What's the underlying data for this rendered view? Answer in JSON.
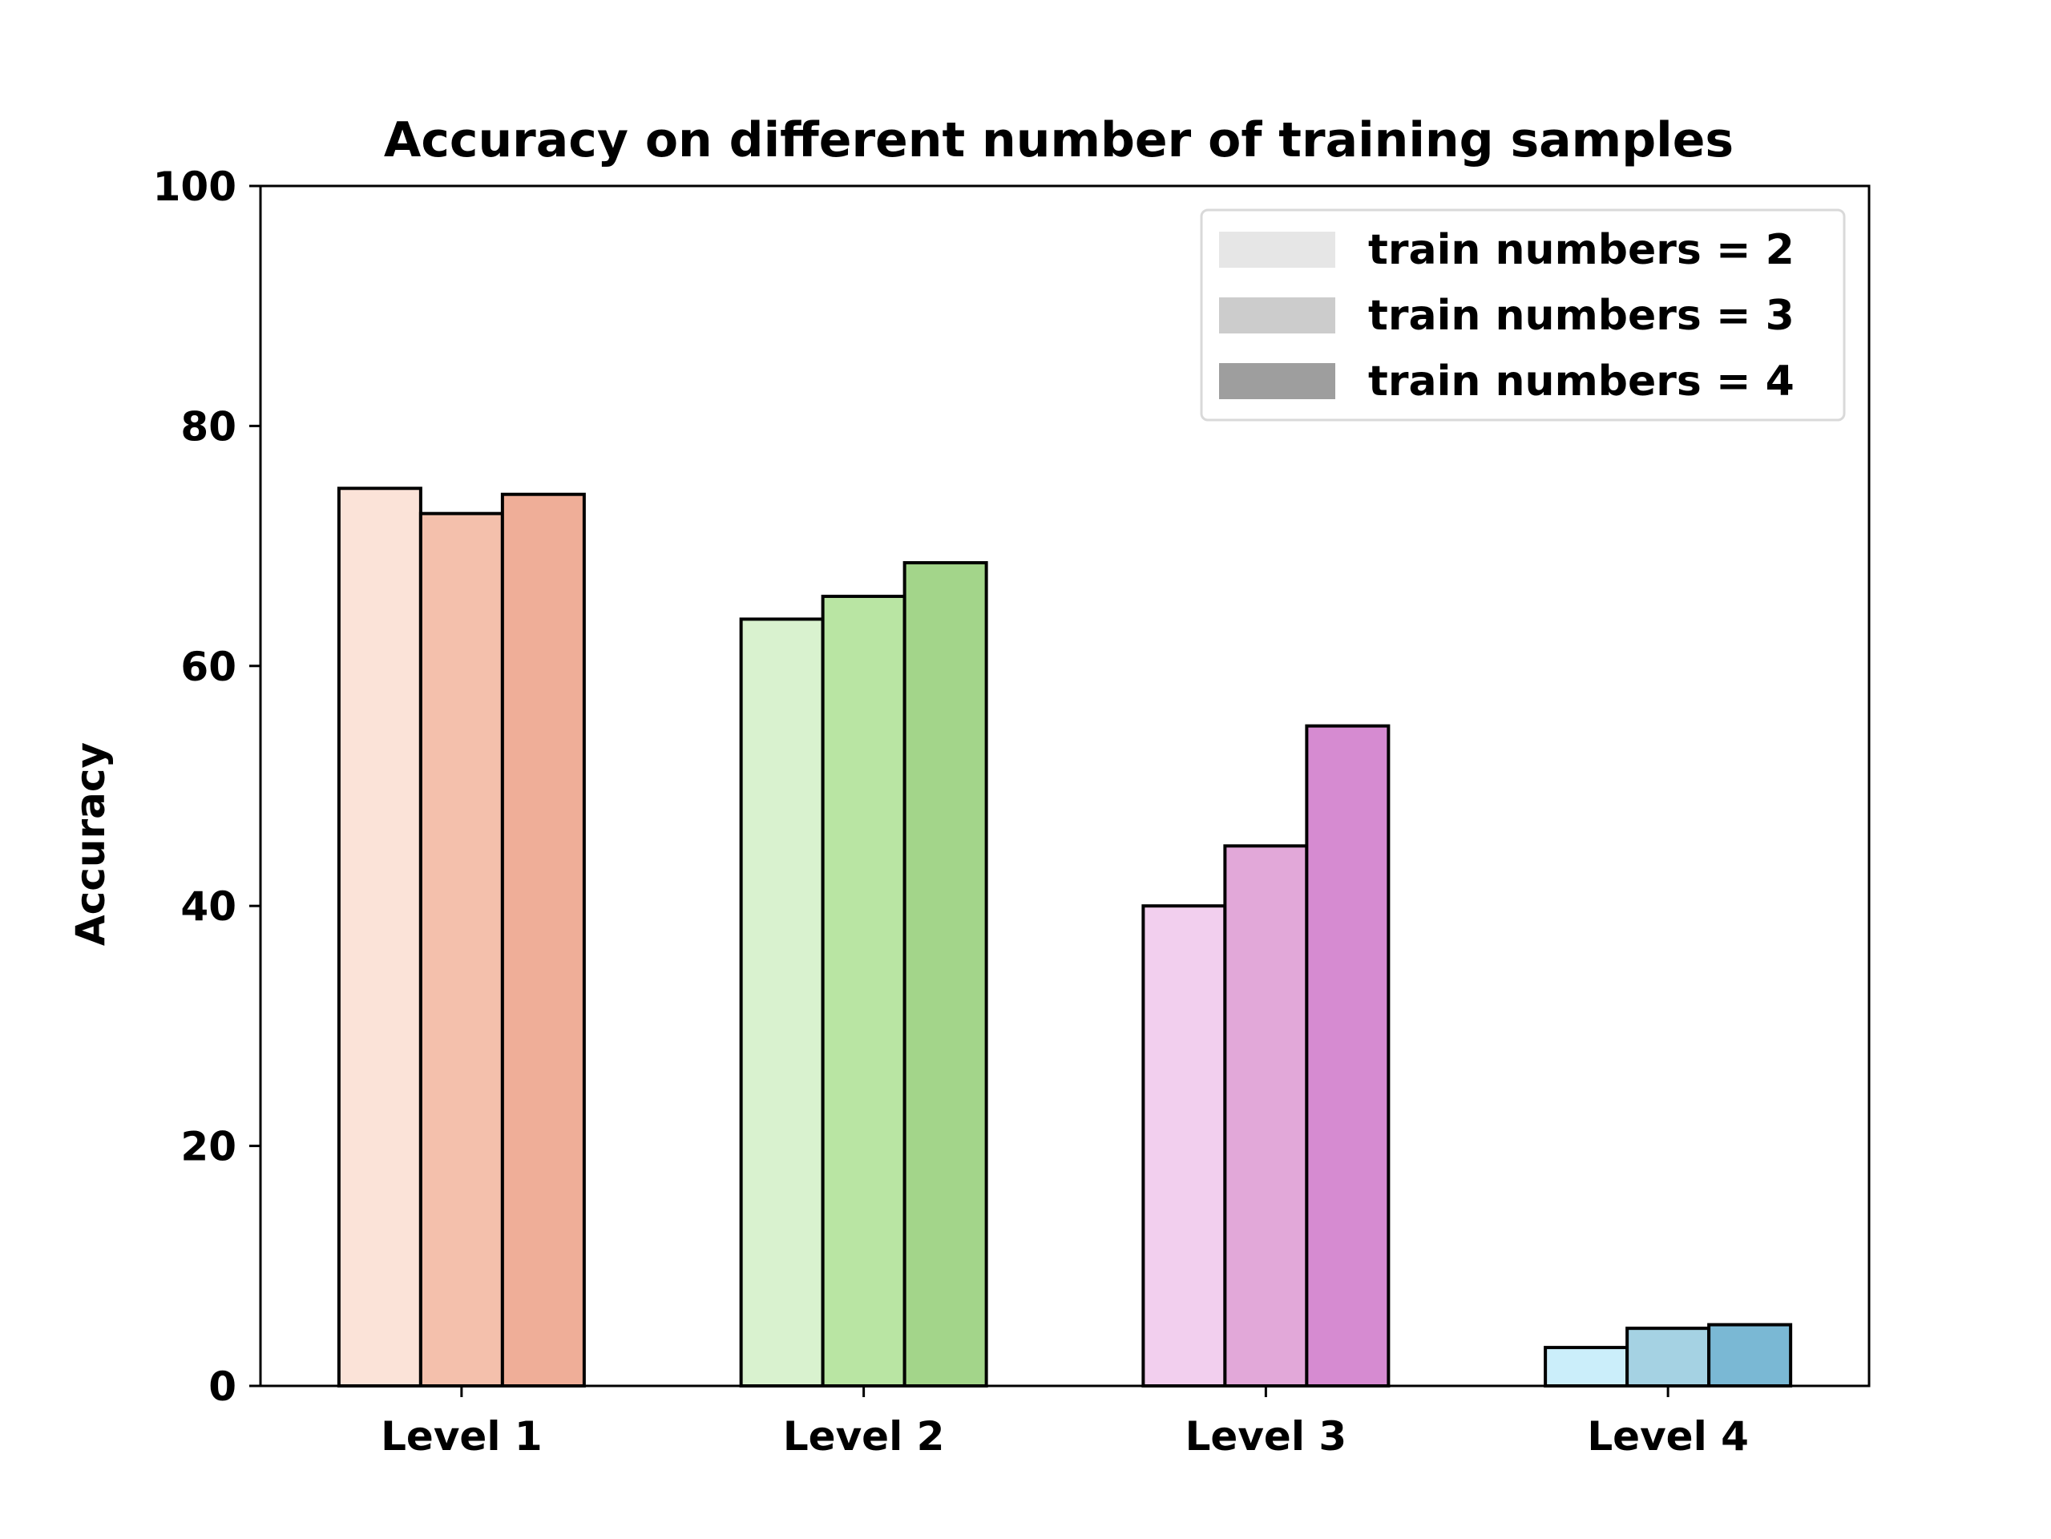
{
  "chart_data": {
    "type": "bar",
    "title": "Accuracy on different number of training samples",
    "xlabel": "",
    "ylabel": "Accuracy",
    "ylim": [
      0,
      100
    ],
    "yticks": [
      "0",
      "20",
      "40",
      "60",
      "80",
      "100"
    ],
    "categories": [
      "Level 1",
      "Level 2",
      "Level 3",
      "Level 4"
    ],
    "series": [
      {
        "name": "train numbers = 2",
        "values": [
          74.8,
          63.9,
          40.0,
          3.2
        ]
      },
      {
        "name": "train numbers = 3",
        "values": [
          72.7,
          65.8,
          45.0,
          4.8
        ]
      },
      {
        "name": "train numbers = 4",
        "values": [
          74.3,
          68.6,
          55.0,
          5.1
        ]
      }
    ],
    "bar_colors": [
      [
        "#fbe3d8",
        "#f4c0ac",
        "#efae98"
      ],
      [
        "#d9f2cf",
        "#b9e5a3",
        "#a3d58a"
      ],
      [
        "#f2cfee",
        "#e2a8d9",
        "#d68bd1"
      ],
      [
        "#cbeefa",
        "#a5d2e3",
        "#7ab8d4"
      ]
    ],
    "legend_colors": [
      "#e6e6e6",
      "#cccccc",
      "#9e9e9e"
    ],
    "legend_position": "top-right",
    "grid": false
  }
}
